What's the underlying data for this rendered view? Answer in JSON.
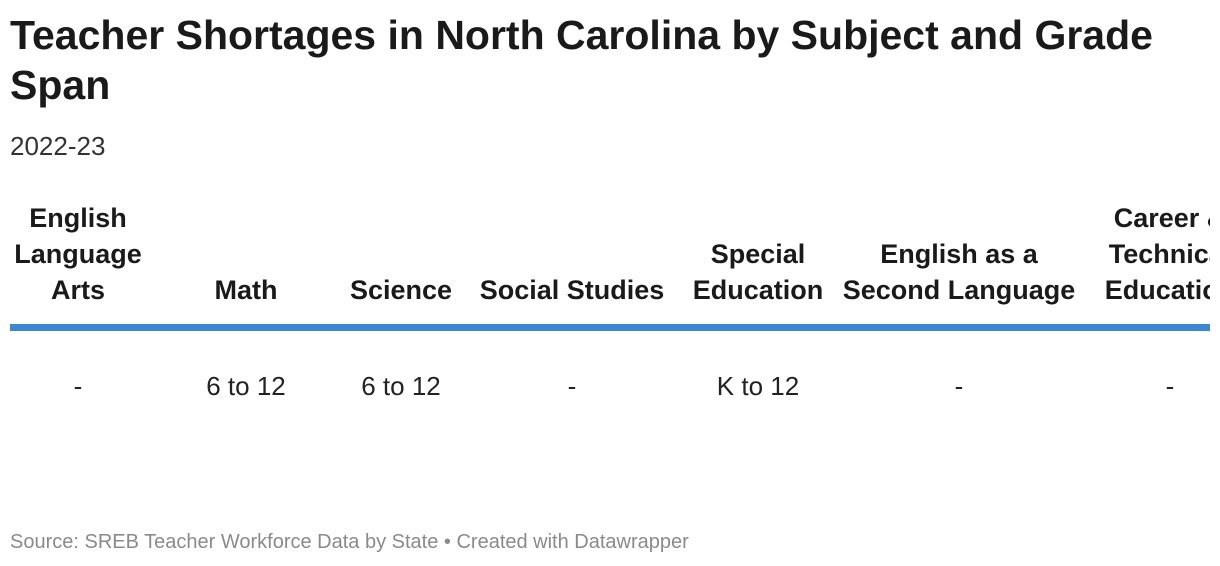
{
  "title": "Teacher Shortages in North Carolina by Subject and Grade Span",
  "subtitle": "2022-23",
  "chart_data": {
    "type": "table",
    "title": "Teacher Shortages in North Carolina by Subject and Grade Span",
    "subtitle": "2022-23",
    "columns": [
      "English Language Arts",
      "Math",
      "Science",
      "Social Studies",
      "Special Education",
      "English as a Second Language",
      "Career & Technical Education"
    ],
    "rows": [
      [
        "-",
        "6 to 12",
        "6 to 12",
        "-",
        "K to 12",
        "-",
        "-"
      ]
    ],
    "header_rule_color": "#3a87d9"
  },
  "footer": {
    "text": "Source: SREB Teacher Workforce Data by State • Created with Datawrapper"
  }
}
